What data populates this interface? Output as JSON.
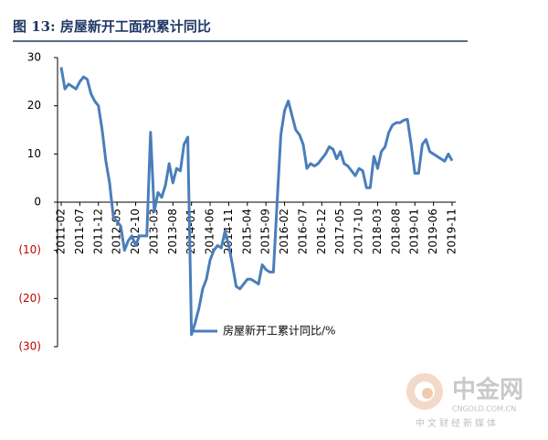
{
  "chart_data": {
    "type": "line",
    "title": "图 13:  房屋新开工面积累计同比",
    "categories": [
      "2011-02",
      null,
      null,
      null,
      null,
      "2011-07",
      null,
      null,
      null,
      null,
      "2011-12",
      null,
      null,
      null,
      null,
      "2012-05",
      null,
      null,
      null,
      null,
      "2012-10",
      null,
      null,
      null,
      null,
      "2013-03",
      null,
      null,
      null,
      null,
      "2013-08",
      null,
      null,
      null,
      null,
      "2014-01",
      null,
      null,
      null,
      null,
      "2014-06",
      null,
      null,
      null,
      null,
      "2014-11",
      null,
      null,
      null,
      null,
      "2015-04",
      null,
      null,
      null,
      null,
      "2015-09",
      null,
      null,
      null,
      null,
      "2016-02",
      null,
      null,
      null,
      null,
      "2016-07",
      null,
      null,
      null,
      null,
      "2016-12",
      null,
      null,
      null,
      null,
      "2017-05",
      null,
      null,
      null,
      null,
      "2017-10",
      null,
      null,
      null,
      null,
      "2018-03",
      null,
      null,
      null,
      null,
      "2018-08",
      null,
      null,
      null,
      null,
      "2019-01",
      null,
      null,
      null,
      null,
      "2019-06",
      null,
      null,
      null,
      null,
      "2019-11"
    ],
    "series": [
      {
        "name": "房屋新开工累计同比/%",
        "color": "#4a7ebb",
        "values": [
          28,
          23.5,
          24.5,
          24,
          23.5,
          25,
          26,
          25.5,
          22.5,
          21,
          20,
          15,
          8.5,
          4,
          -3,
          -4,
          -5,
          -10,
          -8,
          -7,
          -9,
          -7,
          -7,
          -7,
          14.5,
          -2,
          2,
          1,
          3.5,
          8,
          4,
          7,
          6.5,
          12,
          13.5,
          -27.5,
          -25,
          -22,
          -18,
          -16,
          -12,
          -10,
          -9,
          -9.5,
          -6,
          -9,
          -13,
          -17.5,
          -18,
          -17,
          -16,
          -16,
          -16.5,
          -17,
          -13,
          -14,
          -14.5,
          -14.5,
          0,
          14,
          19,
          21,
          18,
          15,
          14,
          12,
          7,
          8,
          7.5,
          8,
          9,
          10,
          11.5,
          11,
          9,
          10.5,
          8,
          7.5,
          6.5,
          5.5,
          7,
          6.5,
          3,
          3,
          9.5,
          7,
          10.5,
          11.5,
          14.5,
          16,
          16.5,
          16.5,
          17,
          17.2,
          12,
          6,
          6,
          12,
          13,
          10.5,
          10,
          9.5,
          9,
          8.5,
          10,
          8.6
        ]
      }
    ],
    "ylim": [
      -30,
      30
    ],
    "yticks": [
      {
        "value": -30,
        "label": "(30)"
      },
      {
        "value": -20,
        "label": "(20)"
      },
      {
        "value": -10,
        "label": "(10)"
      },
      0,
      10,
      20,
      30
    ],
    "negative_tick_color": "#c00000",
    "grid": false
  },
  "watermark": {
    "brand": "中金网",
    "site": "CNGOLD.COM.CN",
    "slogan": "中文财经新媒体"
  }
}
